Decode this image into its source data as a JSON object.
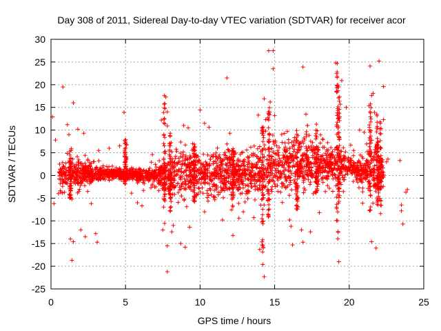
{
  "chart_data": {
    "type": "scatter",
    "title": "Day 308 of 2011, Sidereal Day-to-day VTEC variation (SDTVAR) for receiver acor",
    "xlabel": "GPS time / hours",
    "ylabel": "SDTVAR / TECUs",
    "xlim": [
      0,
      25
    ],
    "ylim": [
      -25,
      30
    ],
    "xticks": [
      "0",
      "5",
      "10",
      "15",
      "20",
      "25"
    ],
    "yticks": [
      "30",
      "25",
      "20",
      "15",
      "10",
      "5",
      "0",
      "-5",
      "-10",
      "-15",
      "-20",
      "-25"
    ],
    "grid": true,
    "marker": "+",
    "series": [
      {
        "name": "acor",
        "color": "#ff0000",
        "outliers": [
          [
            0.1,
            12.9
          ],
          [
            0.3,
            7.8
          ],
          [
            0.2,
            -6.2
          ],
          [
            0.5,
            -4.0
          ],
          [
            0.8,
            19.5
          ],
          [
            1.1,
            11.2
          ],
          [
            1.2,
            9.0
          ],
          [
            1.3,
            -14.0
          ],
          [
            1.4,
            -5.2
          ],
          [
            1.5,
            16.0
          ],
          [
            1.5,
            -14.6
          ],
          [
            1.4,
            -18.7
          ],
          [
            1.8,
            10.2
          ],
          [
            2.2,
            9.3
          ],
          [
            2.3,
            -13.5
          ],
          [
            2.6,
            2.8
          ],
          [
            2.7,
            -6.2
          ],
          [
            3.0,
            -12.8
          ],
          [
            3.1,
            -14.7
          ],
          [
            3.2,
            5.5
          ],
          [
            3.9,
            6.0
          ],
          [
            4.9,
            13.9
          ],
          [
            5.4,
            -3.9
          ],
          [
            5.8,
            -6.0
          ],
          [
            6.1,
            -6.7
          ],
          [
            6.8,
            4.6
          ],
          [
            7.4,
            12.2
          ],
          [
            7.5,
            -12.0
          ],
          [
            7.6,
            17.6
          ],
          [
            7.7,
            17.3
          ],
          [
            7.8,
            -15.5
          ],
          [
            7.8,
            -21.2
          ],
          [
            7.8,
            10.9
          ],
          [
            7.8,
            14.0
          ],
          [
            8.2,
            -11.0
          ],
          [
            8.4,
            5.8
          ],
          [
            8.7,
            -15.0
          ],
          [
            8.9,
            11.0
          ],
          [
            9.0,
            -15.8
          ],
          [
            9.2,
            10.5
          ],
          [
            9.3,
            -11.4
          ],
          [
            9.5,
            7.0
          ],
          [
            10.0,
            14.4
          ],
          [
            10.3,
            11.5
          ],
          [
            10.3,
            -8.0
          ],
          [
            10.6,
            10.6
          ],
          [
            10.9,
            -4.8
          ],
          [
            11.5,
            -9.8
          ],
          [
            11.8,
            21.5
          ],
          [
            12.0,
            9.3
          ],
          [
            12.2,
            -13.2
          ],
          [
            12.6,
            -9.4
          ],
          [
            12.9,
            -8.0
          ],
          [
            13.2,
            -5.1
          ],
          [
            13.4,
            6.2
          ],
          [
            13.6,
            -9.3
          ],
          [
            13.9,
            13.3
          ],
          [
            14.0,
            -16.3
          ],
          [
            14.2,
            -19.6
          ],
          [
            14.3,
            -22.3
          ],
          [
            14.3,
            16.9
          ],
          [
            14.4,
            12.3
          ],
          [
            14.4,
            9.8
          ],
          [
            14.6,
            27.5
          ],
          [
            14.7,
            16.2
          ],
          [
            14.9,
            23.5
          ],
          [
            14.9,
            27.5
          ],
          [
            15.0,
            13.2
          ],
          [
            15.2,
            5.5
          ],
          [
            15.4,
            -3.7
          ],
          [
            16.0,
            -9.8
          ],
          [
            16.1,
            -11.2
          ],
          [
            16.2,
            -15.3
          ],
          [
            16.3,
            7.6
          ],
          [
            16.6,
            6.6
          ],
          [
            16.8,
            -12.0
          ],
          [
            16.9,
            -14.7
          ],
          [
            16.9,
            23.9
          ],
          [
            17.1,
            13.5
          ],
          [
            17.2,
            11.0
          ],
          [
            17.4,
            -12.4
          ],
          [
            17.8,
            11.3
          ],
          [
            18.0,
            -8.2
          ],
          [
            18.4,
            4.8
          ],
          [
            18.9,
            -3.5
          ],
          [
            19.1,
            24.8
          ],
          [
            19.2,
            24.7
          ],
          [
            19.3,
            -19.0
          ],
          [
            19.4,
            15.7
          ],
          [
            19.5,
            20.9
          ],
          [
            19.8,
            15.0
          ],
          [
            20.1,
            6.7
          ],
          [
            20.3,
            5.5
          ],
          [
            20.7,
            10.0
          ],
          [
            20.9,
            -3.6
          ],
          [
            20.9,
            -6.1
          ],
          [
            21.0,
            9.5
          ],
          [
            21.4,
            24.1
          ],
          [
            21.5,
            -14.6
          ],
          [
            21.5,
            17.6
          ],
          [
            21.6,
            18.1
          ],
          [
            21.7,
            13.9
          ],
          [
            21.8,
            -16.0
          ],
          [
            21.9,
            10.4
          ],
          [
            22.0,
            25.2
          ],
          [
            22.1,
            -8.4
          ],
          [
            22.3,
            19.6
          ],
          [
            22.3,
            12.3
          ],
          [
            22.5,
            3.0
          ],
          [
            23.4,
            3.3
          ],
          [
            23.5,
            -6.5
          ],
          [
            23.5,
            -7.8
          ],
          [
            23.6,
            -10.7
          ],
          [
            23.8,
            -3.7
          ],
          [
            23.9,
            -3.1
          ],
          [
            2.0,
            -12.0
          ],
          [
            6.2,
            -3.3
          ],
          [
            4.6,
            6.5
          ],
          [
            8.1,
            -12.4
          ],
          [
            22.6,
            3.6
          ]
        ]
      }
    ]
  }
}
